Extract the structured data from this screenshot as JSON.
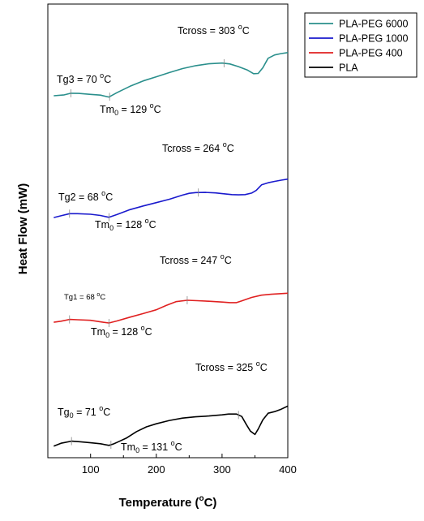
{
  "chart_data": {
    "type": "line",
    "xlabel": "Temperature (°C)",
    "ylabel": "Heat Flow (mW)",
    "xlim": [
      35,
      400
    ],
    "x_ticks": [
      100,
      200,
      300,
      400
    ],
    "y_ticks": "none",
    "grid": false,
    "legend_position": "top-right outside",
    "series": [
      {
        "name": "PLA-PEG 6000",
        "color": "#2a8f8c",
        "points": [
          [
            44,
            0.145
          ],
          [
            60,
            0.155
          ],
          [
            70,
            0.172
          ],
          [
            82,
            0.17
          ],
          [
            100,
            0.16
          ],
          [
            115,
            0.152
          ],
          [
            128,
            0.132
          ],
          [
            140,
            0.178
          ],
          [
            160,
            0.245
          ],
          [
            180,
            0.302
          ],
          [
            200,
            0.345
          ],
          [
            220,
            0.39
          ],
          [
            240,
            0.432
          ],
          [
            260,
            0.462
          ],
          [
            280,
            0.482
          ],
          [
            300,
            0.49
          ],
          [
            312,
            0.48
          ],
          [
            325,
            0.452
          ],
          [
            338,
            0.418
          ],
          [
            348,
            0.378
          ],
          [
            355,
            0.38
          ],
          [
            362,
            0.44
          ],
          [
            370,
            0.54
          ],
          [
            380,
            0.575
          ],
          [
            390,
            0.59
          ],
          [
            400,
            0.6
          ]
        ]
      },
      {
        "name": "PLA-PEG 1000",
        "color": "#1a1acd",
        "points": [
          [
            44,
            0.105
          ],
          [
            55,
            0.125
          ],
          [
            68,
            0.148
          ],
          [
            80,
            0.148
          ],
          [
            100,
            0.142
          ],
          [
            115,
            0.128
          ],
          [
            128,
            0.108
          ],
          [
            140,
            0.138
          ],
          [
            160,
            0.192
          ],
          [
            180,
            0.232
          ],
          [
            200,
            0.268
          ],
          [
            220,
            0.305
          ],
          [
            240,
            0.35
          ],
          [
            250,
            0.37
          ],
          [
            260,
            0.378
          ],
          [
            275,
            0.38
          ],
          [
            290,
            0.374
          ],
          [
            300,
            0.366
          ],
          [
            315,
            0.356
          ],
          [
            325,
            0.353
          ],
          [
            335,
            0.356
          ],
          [
            345,
            0.373
          ],
          [
            352,
            0.402
          ],
          [
            360,
            0.462
          ],
          [
            370,
            0.485
          ],
          [
            380,
            0.5
          ],
          [
            390,
            0.513
          ],
          [
            400,
            0.525
          ]
        ]
      },
      {
        "name": "PLA-PEG 400",
        "color": "#e02020",
        "points": [
          [
            44,
            0.095
          ],
          [
            55,
            0.108
          ],
          [
            68,
            0.132
          ],
          [
            80,
            0.128
          ],
          [
            100,
            0.12
          ],
          [
            115,
            0.1
          ],
          [
            128,
            0.085
          ],
          [
            140,
            0.112
          ],
          [
            160,
            0.162
          ],
          [
            180,
            0.208
          ],
          [
            200,
            0.258
          ],
          [
            215,
            0.315
          ],
          [
            230,
            0.365
          ],
          [
            247,
            0.383
          ],
          [
            262,
            0.378
          ],
          [
            280,
            0.37
          ],
          [
            300,
            0.36
          ],
          [
            312,
            0.352
          ],
          [
            322,
            0.352
          ],
          [
            330,
            0.375
          ],
          [
            345,
            0.42
          ],
          [
            360,
            0.45
          ],
          [
            375,
            0.462
          ],
          [
            390,
            0.47
          ],
          [
            400,
            0.476
          ]
        ]
      },
      {
        "name": "PLA",
        "color": "#000000",
        "points": [
          [
            44,
            0.06
          ],
          [
            55,
            0.09
          ],
          [
            71,
            0.112
          ],
          [
            85,
            0.105
          ],
          [
            100,
            0.095
          ],
          [
            115,
            0.085
          ],
          [
            128,
            0.068
          ],
          [
            135,
            0.083
          ],
          [
            140,
            0.098
          ],
          [
            155,
            0.145
          ],
          [
            170,
            0.21
          ],
          [
            185,
            0.258
          ],
          [
            200,
            0.29
          ],
          [
            220,
            0.324
          ],
          [
            240,
            0.348
          ],
          [
            260,
            0.362
          ],
          [
            280,
            0.37
          ],
          [
            300,
            0.382
          ],
          [
            310,
            0.39
          ],
          [
            322,
            0.39
          ],
          [
            330,
            0.365
          ],
          [
            337,
            0.282
          ],
          [
            343,
            0.215
          ],
          [
            350,
            0.18
          ],
          [
            355,
            0.236
          ],
          [
            362,
            0.33
          ],
          [
            370,
            0.398
          ],
          [
            380,
            0.415
          ],
          [
            390,
            0.44
          ],
          [
            400,
            0.472
          ]
        ]
      }
    ],
    "annotations": [
      {
        "series": 0,
        "x": 70,
        "text_label": "Tg3 = 70 ",
        "text_unit": "C",
        "size": "normal"
      },
      {
        "series": 0,
        "x": 129,
        "text_label": "Tm",
        "text_sub": "0",
        "text_value": " = 129 ",
        "text_unit": "C",
        "size": "normal"
      },
      {
        "series": 0,
        "x": 303,
        "text_label": "Tcross = 303 ",
        "text_unit": "C",
        "size": "normal"
      },
      {
        "series": 1,
        "x": 68,
        "text_label": "Tg2 = 68 ",
        "text_unit": "C",
        "size": "normal"
      },
      {
        "series": 1,
        "x": 128,
        "text_label": "Tm",
        "text_sub": "0",
        "text_value": " = 128 ",
        "text_unit": "C",
        "size": "normal"
      },
      {
        "series": 1,
        "x": 264,
        "text_label": "Tcross = 264 ",
        "text_unit": "C",
        "size": "normal"
      },
      {
        "series": 2,
        "x": 68,
        "text_label": "Tg1 = 68 ",
        "text_unit": "C",
        "size": "small"
      },
      {
        "series": 2,
        "x": 128,
        "text_label": "Tm",
        "text_sub": "0",
        "text_value": " = 128 ",
        "text_unit": "C",
        "size": "normal"
      },
      {
        "series": 2,
        "x": 247,
        "text_label": "Tcross = 247 ",
        "text_unit": "C",
        "size": "normal"
      },
      {
        "series": 3,
        "x": 71,
        "text_label": "Tg",
        "text_sub": "0",
        "text_value": " = 71 ",
        "text_unit": "C",
        "size": "normal"
      },
      {
        "series": 3,
        "x": 131,
        "text_label": "Tm",
        "text_sub": "0",
        "text_value": " = 131 ",
        "text_unit": "C",
        "size": "normal"
      },
      {
        "series": 3,
        "x": 325,
        "text_label": "Tcross = 325 ",
        "text_unit": "C",
        "size": "normal"
      }
    ],
    "degree_symbol": "o"
  }
}
